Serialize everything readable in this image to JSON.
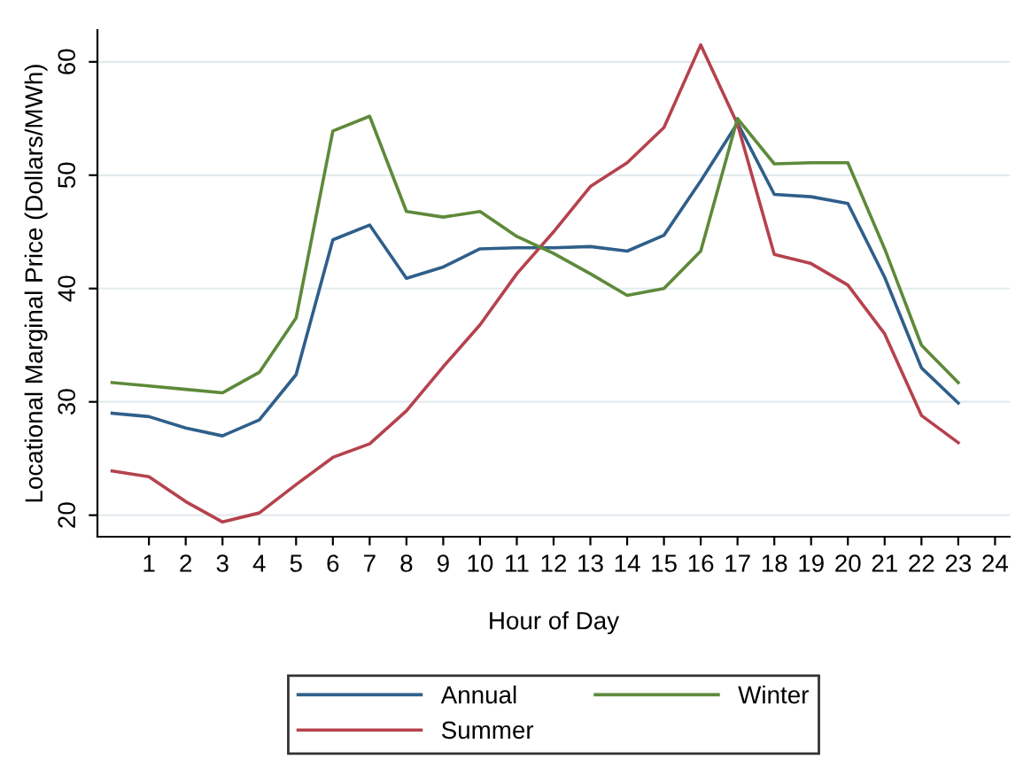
{
  "chart_data": {
    "type": "line",
    "xlabel": "Hour of Day",
    "ylabel": "Locational Marginal Price (Dollars/MWh)",
    "x": [
      0,
      1,
      2,
      3,
      4,
      5,
      6,
      7,
      8,
      9,
      10,
      11,
      12,
      13,
      14,
      15,
      16,
      17,
      18,
      19,
      20,
      21,
      22,
      23
    ],
    "series": [
      {
        "name": "Annual",
        "color": "#2f5f8a",
        "values": [
          29.0,
          28.7,
          27.7,
          27.0,
          28.4,
          32.4,
          44.3,
          45.6,
          40.9,
          41.9,
          43.5,
          43.6,
          43.6,
          43.7,
          43.3,
          44.7,
          49.5,
          54.6,
          48.3,
          48.1,
          47.5,
          41.0,
          33.0,
          29.9
        ]
      },
      {
        "name": "Summer",
        "color": "#b5424d",
        "values": [
          23.9,
          23.4,
          21.2,
          19.4,
          20.2,
          22.7,
          25.1,
          26.3,
          29.2,
          33.1,
          36.8,
          41.3,
          45.0,
          49.0,
          51.1,
          54.2,
          61.5,
          54.5,
          43.0,
          42.2,
          40.3,
          36.0,
          28.8,
          26.4
        ]
      },
      {
        "name": "Winter",
        "color": "#5d8a3a",
        "values": [
          31.7,
          31.4,
          31.1,
          30.8,
          32.6,
          37.4,
          53.9,
          55.2,
          46.8,
          46.3,
          46.8,
          44.6,
          43.1,
          41.3,
          39.4,
          40.0,
          43.3,
          55.0,
          51.0,
          51.1,
          51.1,
          43.5,
          35.0,
          31.7
        ]
      }
    ],
    "xlim": [
      -0.4,
      24.4
    ],
    "xticks": [
      1,
      2,
      3,
      4,
      5,
      6,
      7,
      8,
      9,
      10,
      11,
      12,
      13,
      14,
      15,
      16,
      17,
      18,
      19,
      20,
      21,
      22,
      23,
      24
    ],
    "ylim": [
      18.1,
      62.8
    ],
    "yticks": [
      20,
      30,
      40,
      50,
      60
    ],
    "grid": "y",
    "legend": "bottom",
    "marker": "none",
    "line_style": "solid"
  }
}
